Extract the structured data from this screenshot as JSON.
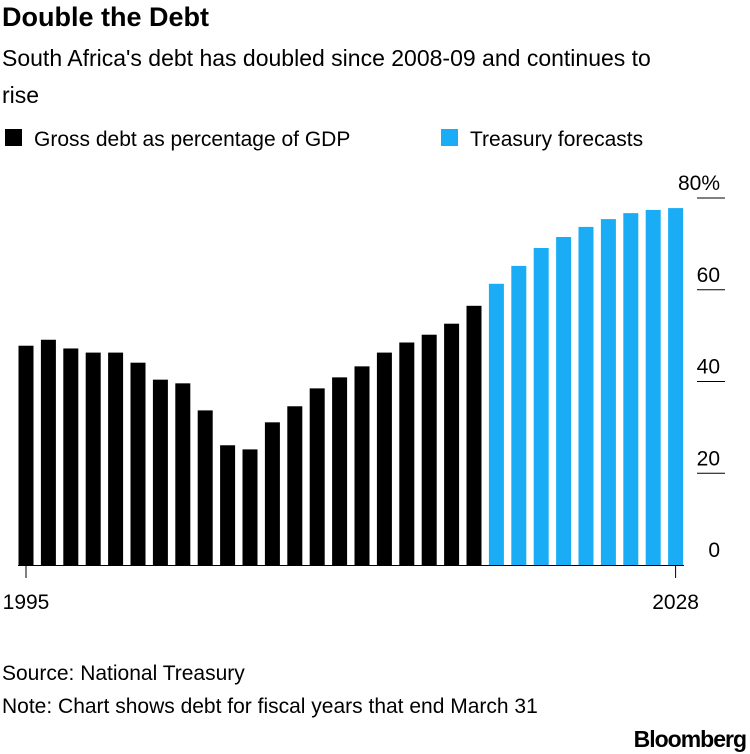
{
  "chart_data": {
    "type": "bar",
    "title": "Double the Debt",
    "subtitle": "South Africa's debt has doubled since 2008-09 and continues to rise",
    "categories": [
      "1995",
      null,
      null,
      null,
      null,
      null,
      null,
      null,
      null,
      null,
      null,
      null,
      null,
      null,
      null,
      null,
      null,
      null,
      null,
      null,
      null,
      null,
      null,
      null,
      null,
      null,
      null,
      null,
      null,
      "2028"
    ],
    "series": [
      {
        "name": "Gross debt as percentage of GDP",
        "color": "#000000",
        "values": [
          47.8,
          49.1,
          47.2,
          46.3,
          46.3,
          44.1,
          40.4,
          39.6,
          33.7,
          26.1,
          25.2,
          31.1,
          34.6,
          38.5,
          40.9,
          43.3,
          46.3,
          48.5,
          50.2,
          52.6,
          56.5,
          null,
          null,
          null,
          null,
          null,
          null,
          null,
          null,
          null
        ]
      },
      {
        "name": "Treasury forecasts",
        "color": "#1aadf5",
        "values": [
          null,
          null,
          null,
          null,
          null,
          null,
          null,
          null,
          null,
          null,
          null,
          null,
          null,
          null,
          null,
          null,
          null,
          null,
          null,
          null,
          null,
          61.3,
          65.2,
          69.1,
          71.5,
          73.7,
          75.4,
          76.7,
          77.4,
          77.8
        ]
      }
    ],
    "ylim": [
      0,
      80
    ],
    "yticks": [
      0,
      20,
      40,
      60,
      {
        "value": 80,
        "label": "80%"
      }
    ],
    "legend": "top",
    "source": "Source: National Treasury",
    "note": "Note: Chart shows debt for fiscal years that end March 31",
    "brand": "Bloomberg"
  }
}
